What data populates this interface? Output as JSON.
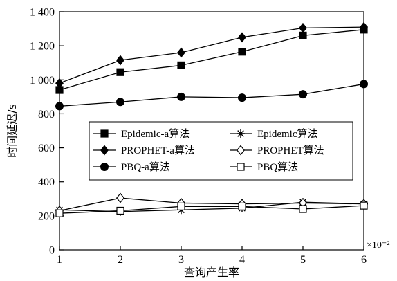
{
  "chart_data": {
    "type": "line",
    "xlabel": "查询产生率",
    "ylabel": "时间延迟/s",
    "x_unit": "×10⁻²",
    "x": [
      1,
      2,
      3,
      4,
      5,
      6
    ],
    "xlim": [
      1,
      6
    ],
    "ylim": [
      0,
      1400
    ],
    "xticks": [
      "1",
      "2",
      "3",
      "4",
      "5",
      "6"
    ],
    "yticks": [
      "0",
      "200",
      "400",
      "600",
      "800",
      "1 000",
      "1 200",
      "1 400"
    ],
    "ytick_values": [
      0,
      200,
      400,
      600,
      800,
      1000,
      1200,
      1400
    ],
    "grid": false,
    "legend_position": "center",
    "series": [
      {
        "name": "Epidemic-a算法",
        "marker": "square-filled",
        "values": [
          940,
          1045,
          1085,
          1165,
          1260,
          1295
        ]
      },
      {
        "name": "PROPHET-a算法",
        "marker": "diamond-filled",
        "values": [
          980,
          1115,
          1160,
          1250,
          1305,
          1310
        ]
      },
      {
        "name": "PBQ-a算法",
        "marker": "circle-filled",
        "values": [
          845,
          870,
          900,
          895,
          915,
          975
        ]
      },
      {
        "name": "Epidemic算法",
        "marker": "asterisk",
        "values": [
          235,
          225,
          235,
          245,
          280,
          270
        ]
      },
      {
        "name": "PROPHET算法",
        "marker": "diamond-open",
        "values": [
          230,
          305,
          275,
          270,
          275,
          270
        ]
      },
      {
        "name": "PBQ算法",
        "marker": "square-open",
        "values": [
          215,
          230,
          255,
          255,
          240,
          260
        ]
      }
    ]
  }
}
